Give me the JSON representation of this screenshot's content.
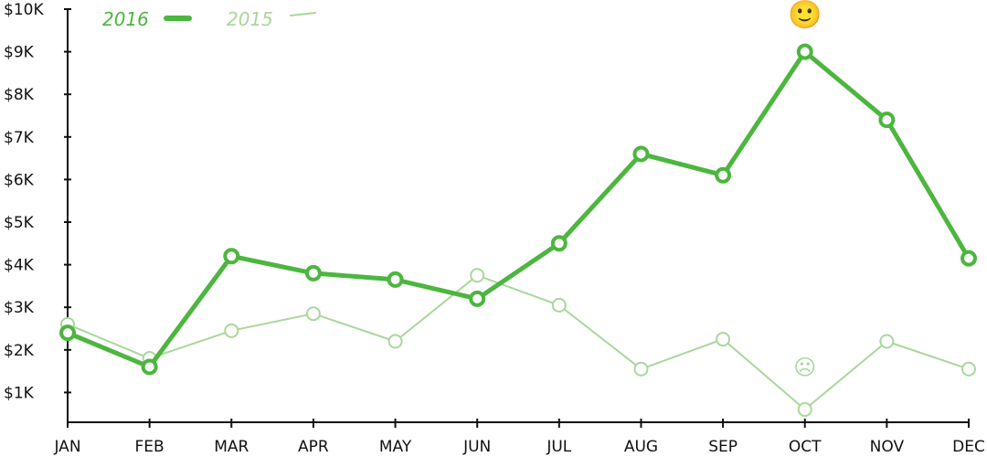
{
  "chart_data": {
    "type": "line",
    "categories": [
      "JAN",
      "FEB",
      "MAR",
      "APR",
      "MAY",
      "JUN",
      "JUL",
      "AUG",
      "SEP",
      "OCT",
      "NOV",
      "DEC"
    ],
    "series": [
      {
        "name": "2016",
        "color": "#4cb63e",
        "values": [
          2400,
          1600,
          4200,
          3800,
          3650,
          3200,
          4500,
          6600,
          6100,
          9000,
          7400,
          4150
        ]
      },
      {
        "name": "2015",
        "color": "#a9d79b",
        "values": [
          2600,
          1800,
          2450,
          2850,
          2200,
          3750,
          3050,
          1550,
          2250,
          600,
          2200,
          1550
        ]
      }
    ],
    "y_ticks": [
      "$1K",
      "$2K",
      "$3K",
      "$4K",
      "$5K",
      "$6K",
      "$7K",
      "$8K",
      "$9K",
      "$10K"
    ],
    "ylim": [
      0,
      10000
    ],
    "legend_position": "top-left",
    "annotations": [
      {
        "text": "🙂",
        "series": "2016",
        "category": "OCT"
      },
      {
        "text": "☹",
        "series": "2015",
        "category": "OCT"
      }
    ],
    "grid": false
  }
}
